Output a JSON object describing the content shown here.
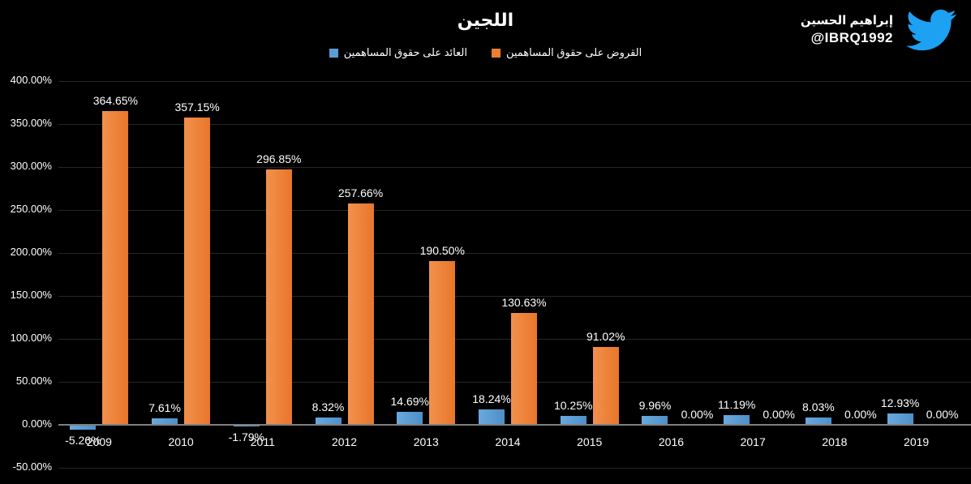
{
  "title": "اللجين",
  "watermark": {
    "name": "إبراهيم الحسين",
    "handle": "@IBRQ1992",
    "twitter_blue": "#1DA1F2"
  },
  "legend": [
    {
      "label": "العائد على حقوق المساهمين",
      "color": "#5B9BD5"
    },
    {
      "label": "القروض على حقوق المساهمين",
      "color": "#ED7D31"
    }
  ],
  "chart_data": {
    "type": "bar",
    "title": "اللجين",
    "categories": [
      "2009",
      "2010",
      "2011",
      "2012",
      "2013",
      "2014",
      "2015",
      "2016",
      "2017",
      "2018",
      "2019"
    ],
    "series": [
      {
        "name": "العائد على حقوق المساهمين",
        "color": "#5B9BD5",
        "values": [
          -5.26,
          7.61,
          -1.79,
          8.32,
          14.69,
          18.24,
          10.25,
          9.96,
          11.19,
          8.03,
          12.93
        ],
        "labels": [
          "-5.26%",
          "7.61%",
          "-1.79%",
          "8.32%",
          "14.69%",
          "18.24%",
          "10.25%",
          "9.96%",
          "11.19%",
          "8.03%",
          "12.93%"
        ]
      },
      {
        "name": "القروض على حقوق المساهمين",
        "color": "#ED7D31",
        "values": [
          364.65,
          357.15,
          296.85,
          257.66,
          190.5,
          130.63,
          91.02,
          0,
          0,
          0,
          0
        ],
        "labels": [
          "364.65%",
          "357.15%",
          "296.85%",
          "257.66%",
          "190.50%",
          "130.63%",
          "91.02%",
          "0.00%",
          "0.00%",
          "0.00%",
          "0.00%"
        ]
      }
    ],
    "ylim": [
      -50,
      400
    ],
    "ytick_step": 50,
    "yticks": [
      "400.00%",
      "350.00%",
      "300.00%",
      "250.00%",
      "200.00%",
      "150.00%",
      "100.00%",
      "50.00%",
      "0.00%",
      "-50.00%"
    ],
    "grid": true,
    "legend_position": "top-center",
    "background": "#000000",
    "text_color": "#FFFFFF",
    "gridline_color": "#262626",
    "axis_line_color": "#7F7F7F"
  }
}
